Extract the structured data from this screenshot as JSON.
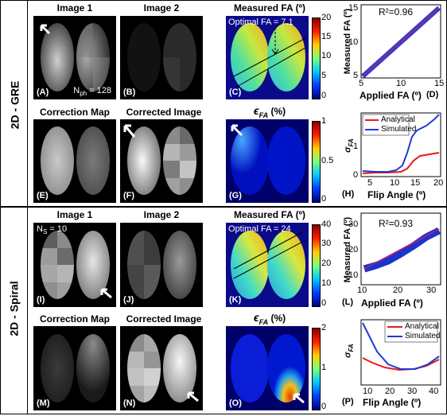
{
  "row_labels": {
    "gre": "2D - GRE",
    "spiral": "2D - Spiral"
  },
  "gre": {
    "titles": {
      "img1": "Image 1",
      "img2": "Image 2",
      "meas": "Measured FA (º)",
      "corrmap": "Correction Map",
      "corrimg": "Corrected Image",
      "eps": "ϵ",
      "eps_sub": "FA",
      "eps_unit": " (%)"
    },
    "labels": {
      "A": "(A)",
      "B": "(B)",
      "C": "(C)",
      "D": "(D)",
      "E": "(E)",
      "F": "(F)",
      "G": "(G)",
      "H": "(H)"
    },
    "nph": "N",
    "nph_sub": "ph",
    "nph_val": " = 128",
    "optimal": "Optimal FA = 7.1",
    "cbar_meas": [
      "20",
      "15",
      "10",
      "5",
      "0"
    ],
    "cbar_eps": [
      "1",
      "0.5",
      "0"
    ],
    "plot_d": {
      "r2": "R²=0.96",
      "ylabel": "Measured FA (º)",
      "xlabel": "Applied FA (º)",
      "xticks": [
        "5",
        "10",
        "15"
      ],
      "yticks": [
        "15",
        "10",
        "5"
      ]
    },
    "plot_h": {
      "legend": [
        "Analytical",
        "Simulated"
      ],
      "ylabel": "σ",
      "ylabel_sub": "FA",
      "xlabel": "Flip Angle (º)",
      "xticks": [
        "5",
        "10",
        "15",
        "20"
      ],
      "yticks": [
        "1",
        "0"
      ]
    }
  },
  "spiral": {
    "titles": {
      "img1": "Image 1",
      "img2": "Image 2",
      "meas": "Measured FA (º)",
      "corrmap": "Correction Map",
      "corrimg": "Corrected Image",
      "eps": "ϵ",
      "eps_sub": "FA",
      "eps_unit": " (%)"
    },
    "labels": {
      "I": "(I)",
      "J": "(J)",
      "K": "(K)",
      "L": "(L)",
      "M": "(M)",
      "N": "(N)",
      "O": "(O)",
      "P": "(P)"
    },
    "ns": "N",
    "ns_sub": "S",
    "ns_val": " = 10",
    "optimal": "Optimal FA = 24",
    "cbar_meas": [
      "40",
      "30",
      "20",
      "10",
      "0"
    ],
    "cbar_eps": [
      "2",
      "1",
      "0"
    ],
    "plot_l": {
      "r2": "R²=0.93",
      "ylabel": "Measured FA (º)",
      "xlabel": "Applied FA (º)",
      "xticks": [
        "10",
        "20",
        "30"
      ],
      "yticks": [
        "30",
        "20",
        "10"
      ]
    },
    "plot_p": {
      "legend": [
        "Analytical",
        "Simulated"
      ],
      "ylabel": "σ",
      "ylabel_sub": "FA",
      "xlabel": "Flip Angle (º)",
      "xticks": [
        "10",
        "20",
        "30",
        "40"
      ],
      "yticks": []
    }
  },
  "colors": {
    "analytical": "#e8171f",
    "simulated": "#1f3bd6",
    "fit": "#c0187a",
    "points": "#2a3fd0",
    "spiral_points": "#1c34c8"
  }
}
